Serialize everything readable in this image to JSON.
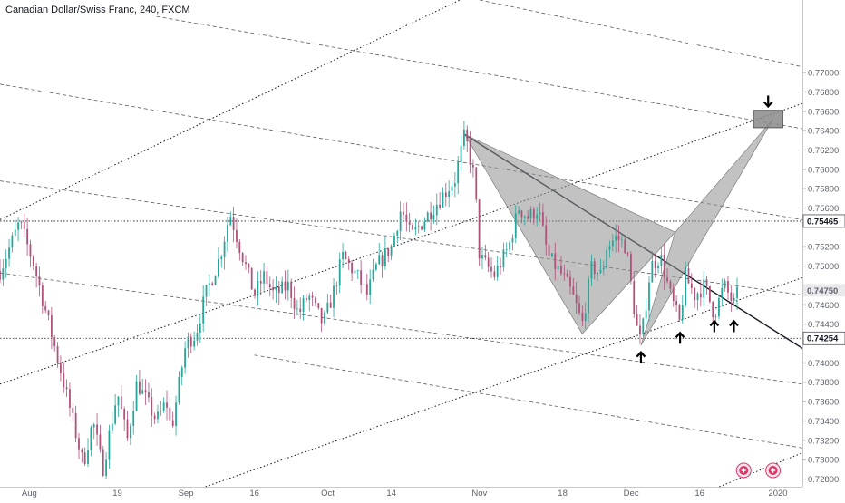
{
  "chart_data": {
    "type": "candlestick",
    "title": "Canadian Dollar/Swiss Franc, 240, FXCM",
    "y_range": [
      0.7272,
      0.7775
    ],
    "y_ticks": [
      0.728,
      0.73,
      0.732,
      0.734,
      0.736,
      0.738,
      0.74,
      0.744,
      0.746,
      0.75,
      0.752,
      0.756,
      0.758,
      0.76,
      0.762,
      0.764,
      0.766,
      0.768,
      0.77
    ],
    "y_tick_labels": [
      "0.72800",
      "0.73000",
      "0.73200",
      "0.73400",
      "0.73600",
      "0.73800",
      "0.74000",
      "0.74400",
      "0.74600",
      "0.75000",
      "0.75200",
      "0.75600",
      "0.75800",
      "0.76000",
      "0.76200",
      "0.76400",
      "0.76600",
      "0.76800",
      "0.77000"
    ],
    "x_range": [
      "2019-07-26",
      "2020-01-06"
    ],
    "x_ticks": [
      {
        "date": "2019-08-01",
        "label": "Aug"
      },
      {
        "date": "2019-08-19",
        "label": "19"
      },
      {
        "date": "2019-09-02",
        "label": "Sep"
      },
      {
        "date": "2019-09-16",
        "label": "16"
      },
      {
        "date": "2019-10-01",
        "label": "Oct"
      },
      {
        "date": "2019-10-14",
        "label": "14"
      },
      {
        "date": "2019-11-01",
        "label": "Nov"
      },
      {
        "date": "2019-11-18",
        "label": "18"
      },
      {
        "date": "2019-12-02",
        "label": "Dec"
      },
      {
        "date": "2019-12-16",
        "label": "16"
      },
      {
        "date": "2020-01-01",
        "label": "2020"
      }
    ],
    "price_labels": [
      {
        "value": 0.75465,
        "label": "0.75465"
      },
      {
        "value": 0.7475,
        "label": "0.74750"
      },
      {
        "value": 0.74254,
        "label": "0.74254"
      }
    ],
    "horizontal_levels": [
      0.75465,
      0.74254
    ],
    "path": [
      [
        "2019-07-26",
        0.7495
      ],
      [
        "2019-07-30",
        0.7545
      ],
      [
        "2019-08-02",
        0.75
      ],
      [
        "2019-08-06",
        0.742
      ],
      [
        "2019-08-08",
        0.738
      ],
      [
        "2019-08-12",
        0.7295
      ],
      [
        "2019-08-14",
        0.734
      ],
      [
        "2019-08-16",
        0.729
      ],
      [
        "2019-08-19",
        0.737
      ],
      [
        "2019-08-21",
        0.732
      ],
      [
        "2019-08-23",
        0.738
      ],
      [
        "2019-08-27",
        0.734
      ],
      [
        "2019-08-29",
        0.736
      ],
      [
        "2019-08-30",
        0.733
      ],
      [
        "2019-09-02",
        0.742
      ],
      [
        "2019-09-04",
        0.743
      ],
      [
        "2019-09-06",
        0.747
      ],
      [
        "2019-09-09",
        0.751
      ],
      [
        "2019-09-11",
        0.7555
      ],
      [
        "2019-09-13",
        0.752
      ],
      [
        "2019-09-16",
        0.747
      ],
      [
        "2019-09-18",
        0.749
      ],
      [
        "2019-09-20",
        0.747
      ],
      [
        "2019-09-23",
        0.748
      ],
      [
        "2019-09-25",
        0.745
      ],
      [
        "2019-09-27",
        0.747
      ],
      [
        "2019-09-30",
        0.744
      ],
      [
        "2019-10-02",
        0.747
      ],
      [
        "2019-10-04",
        0.751
      ],
      [
        "2019-10-07",
        0.749
      ],
      [
        "2019-10-09",
        0.747
      ],
      [
        "2019-10-11",
        0.75
      ],
      [
        "2019-10-14",
        0.752
      ],
      [
        "2019-10-16",
        0.756
      ],
      [
        "2019-10-18",
        0.753
      ],
      [
        "2019-10-21",
        0.755
      ],
      [
        "2019-10-24",
        0.757
      ],
      [
        "2019-10-27",
        0.759
      ],
      [
        "2019-10-29",
        0.7636
      ],
      [
        "2019-10-31",
        0.759
      ],
      [
        "2019-11-01",
        0.751
      ],
      [
        "2019-11-04",
        0.749
      ],
      [
        "2019-11-07",
        0.752
      ],
      [
        "2019-11-09",
        0.756
      ],
      [
        "2019-11-11",
        0.755
      ],
      [
        "2019-11-13",
        0.756
      ],
      [
        "2019-11-15",
        0.751
      ],
      [
        "2019-11-18",
        0.749
      ],
      [
        "2019-11-20",
        0.747
      ],
      [
        "2019-11-22",
        0.744
      ],
      [
        "2019-11-24",
        0.75
      ],
      [
        "2019-11-26",
        0.749
      ],
      [
        "2019-11-27",
        0.752
      ],
      [
        "2019-11-29",
        0.753
      ],
      [
        "2019-12-01",
        0.752
      ],
      [
        "2019-12-03",
        0.744
      ],
      [
        "2019-12-04",
        0.742
      ],
      [
        "2019-12-06",
        0.75
      ],
      [
        "2019-12-08",
        0.751
      ],
      [
        "2019-12-10",
        0.747
      ],
      [
        "2019-12-12",
        0.744
      ],
      [
        "2019-12-13",
        0.749
      ],
      [
        "2019-12-15",
        0.747
      ],
      [
        "2019-12-17",
        0.748
      ],
      [
        "2019-12-19",
        0.745
      ],
      [
        "2019-12-21",
        0.748
      ],
      [
        "2019-12-23",
        0.746
      ],
      [
        "2019-12-24",
        0.7475
      ]
    ],
    "harmonic_pattern": [
      [
        "2019-10-29",
        0.7636
      ],
      [
        "2019-11-22",
        0.743
      ],
      [
        "2019-12-11",
        0.7535
      ],
      [
        "2019-12-04",
        0.7418
      ],
      [
        "2019-12-31",
        0.7652
      ]
    ],
    "target_zone": {
      "x": [
        "2019-12-27",
        "2020-01-02"
      ],
      "y": [
        0.7643,
        0.7661
      ]
    },
    "trendlines": [
      {
        "points": [
          [
            "2019-10-29",
            0.7636
          ],
          [
            "2020-01-06",
            0.7415
          ]
        ],
        "style": "solid"
      },
      {
        "points": [
          [
            "2019-07-26",
            0.7548
          ],
          [
            "2019-10-28",
            0.7775
          ]
        ],
        "style": "dotted"
      },
      {
        "points": [
          [
            "2019-07-26",
            0.7378
          ],
          [
            "2020-01-06",
            0.7668
          ]
        ],
        "style": "dotted"
      },
      {
        "points": [
          [
            "2019-09-06",
            0.7272
          ],
          [
            "2020-01-06",
            0.7488
          ]
        ],
        "style": "dotted"
      },
      {
        "points": [
          [
            "2019-12-20",
            0.7272
          ],
          [
            "2020-01-06",
            0.7307
          ]
        ],
        "style": "dotted"
      },
      {
        "points": [
          [
            "2019-11-01",
            0.7775
          ],
          [
            "2020-01-06",
            0.7706
          ]
        ],
        "style": "dashed"
      },
      {
        "points": [
          [
            "2019-08-27",
            0.7758
          ],
          [
            "2020-01-06",
            0.7642
          ]
        ],
        "style": "dashed"
      },
      {
        "points": [
          [
            "2019-07-26",
            0.7688
          ],
          [
            "2020-01-06",
            0.7548
          ]
        ],
        "style": "dashed"
      },
      {
        "points": [
          [
            "2019-07-26",
            0.7588
          ],
          [
            "2020-01-06",
            0.747
          ]
        ],
        "style": "dashed"
      },
      {
        "points": [
          [
            "2019-07-26",
            0.7493
          ],
          [
            "2020-01-06",
            0.7378
          ]
        ],
        "style": "dashed"
      },
      {
        "points": [
          [
            "2019-09-16",
            0.7408
          ],
          [
            "2020-01-06",
            0.7312
          ]
        ],
        "style": "dashed"
      }
    ],
    "markers": [
      {
        "date": "2019-12-04",
        "price": 0.7411,
        "direction": "up"
      },
      {
        "date": "2019-12-12",
        "price": 0.7431,
        "direction": "up"
      },
      {
        "date": "2019-12-19",
        "price": 0.7443,
        "direction": "up"
      },
      {
        "date": "2019-12-23",
        "price": 0.7443,
        "direction": "up"
      },
      {
        "date": "2019-12-30",
        "price": 0.7665,
        "direction": "down"
      }
    ],
    "event_icons": [
      "2019-12-25",
      "2019-12-31"
    ],
    "colors": {
      "up": "#26a69a",
      "down": "#b0517a",
      "pattern_fill": "#8f8f8f",
      "line": "#131722",
      "label_dark": "#131722",
      "label_gray": "#5d606b",
      "event": "#d9386b"
    }
  }
}
